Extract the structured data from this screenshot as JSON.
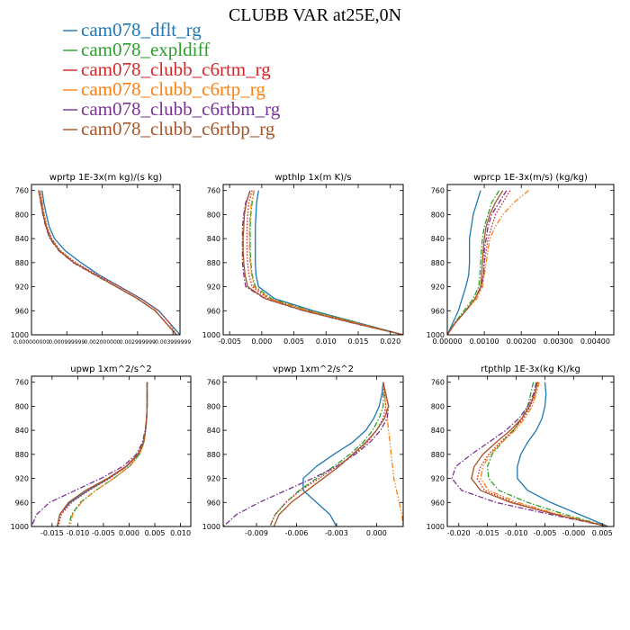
{
  "figure": {
    "title": "CLUBB VAR at25E,0N"
  },
  "legend": [
    {
      "name": "cam078_dflt_rg",
      "color": "#1f77b4",
      "dash": "solid"
    },
    {
      "name": "cam078_expldiff",
      "color": "#2ca02c",
      "dash": "dashdot"
    },
    {
      "name": "cam078_clubb_c6rtm_rg",
      "color": "#d62728",
      "dash": "dotted"
    },
    {
      "name": "cam078_clubb_c6rtp_rg",
      "color": "#ff7f0e",
      "dash": "dashdotdot"
    },
    {
      "name": "cam078_clubb_c6rtbm_rg",
      "color": "#7b3294",
      "dash": "dashdot"
    },
    {
      "name": "cam078_clubb_c6rtbp_rg",
      "color": "#a65628",
      "dash": "solid"
    }
  ],
  "chart_data": [
    {
      "type": "line",
      "title": "wprtp  1E-3x(m kg)/(s kg)",
      "xlim": [
        0.0,
        0.0042
      ],
      "ylim": [
        1000,
        750
      ],
      "xticks": [
        0.0,
        0.001,
        0.002,
        0.003,
        0.004
      ],
      "xtick_labels": [
        "0.000000000",
        "0.000999999",
        "0.002000000",
        "0.002999999",
        "0.003999999"
      ],
      "yticks": [
        760,
        800,
        840,
        880,
        920,
        960,
        1000
      ],
      "ytick_labels": [
        "760",
        "800",
        "840",
        "880",
        "920",
        "960",
        "1000"
      ],
      "y": [
        760,
        780,
        800,
        820,
        840,
        860,
        880,
        900,
        920,
        940,
        960,
        980,
        1000
      ],
      "series": [
        {
          "name": "cam078_dflt_rg",
          "x": [
            0.0003,
            0.00035,
            0.00042,
            0.0005,
            0.00065,
            0.00095,
            0.0014,
            0.0019,
            0.0025,
            0.0031,
            0.0036,
            0.0039,
            0.0042
          ]
        },
        {
          "name": "cam078_expldiff",
          "x": [
            0.00025,
            0.0003,
            0.00035,
            0.00042,
            0.00055,
            0.0008,
            0.0012,
            0.0018,
            0.0024,
            0.003,
            0.0035,
            0.0038,
            0.0041
          ]
        },
        {
          "name": "cam078_clubb_c6rtm_rg",
          "x": [
            0.00025,
            0.0003,
            0.00036,
            0.00044,
            0.00057,
            0.00082,
            0.00125,
            0.00185,
            0.0025,
            0.0031,
            0.0036,
            0.0039,
            0.0041
          ]
        },
        {
          "name": "cam078_clubb_c6rtp_rg",
          "x": [
            0.00025,
            0.0003,
            0.00035,
            0.00042,
            0.00055,
            0.0008,
            0.0012,
            0.0018,
            0.0024,
            0.003,
            0.0035,
            0.0038,
            0.0041
          ]
        },
        {
          "name": "cam078_clubb_c6rtbm_rg",
          "x": [
            0.0002,
            0.00026,
            0.00032,
            0.0004,
            0.00052,
            0.00077,
            0.00118,
            0.00178,
            0.0024,
            0.003,
            0.0035,
            0.0038,
            0.0041
          ]
        },
        {
          "name": "cam078_clubb_c6rtbp_rg",
          "x": [
            0.0002,
            0.00027,
            0.00033,
            0.00041,
            0.00054,
            0.00078,
            0.0012,
            0.0018,
            0.0024,
            0.003,
            0.0035,
            0.0038,
            0.0041
          ]
        }
      ]
    },
    {
      "type": "line",
      "title": "wpthlp  1x(m K)/s",
      "xlim": [
        -0.006,
        0.022
      ],
      "ylim": [
        1000,
        750
      ],
      "xticks": [
        -0.005,
        0.0,
        0.005,
        0.01,
        0.015,
        0.02
      ],
      "xtick_labels": [
        "-0.005",
        "0.000",
        "0.005",
        "0.010",
        "0.015",
        "0.020"
      ],
      "yticks": [
        760,
        800,
        840,
        880,
        920,
        960,
        1000
      ],
      "ytick_labels": [
        "760",
        "800",
        "840",
        "880",
        "920",
        "960",
        "1000"
      ],
      "y": [
        760,
        780,
        800,
        820,
        840,
        860,
        880,
        900,
        920,
        940,
        960,
        980,
        1000
      ],
      "series": [
        {
          "name": "cam078_dflt_rg",
          "x": [
            -0.0005,
            -0.0008,
            -0.0009,
            -0.001,
            -0.001,
            -0.001,
            -0.001,
            -0.0009,
            -0.0005,
            0.002,
            0.008,
            0.015,
            0.022
          ]
        },
        {
          "name": "cam078_expldiff",
          "x": [
            -0.0012,
            -0.0015,
            -0.0017,
            -0.0018,
            -0.0018,
            -0.0018,
            -0.0017,
            -0.0015,
            -0.001,
            0.0015,
            0.0075,
            0.0148,
            0.022
          ]
        },
        {
          "name": "cam078_clubb_c6rtm_rg",
          "x": [
            -0.0015,
            -0.002,
            -0.0022,
            -0.0023,
            -0.0023,
            -0.0023,
            -0.0022,
            -0.002,
            -0.0015,
            0.001,
            0.007,
            0.0145,
            0.022
          ]
        },
        {
          "name": "cam078_clubb_c6rtp_rg",
          "x": [
            -0.0012,
            -0.0016,
            -0.0018,
            -0.0019,
            -0.0019,
            -0.0019,
            -0.0018,
            -0.0016,
            -0.0012,
            0.0012,
            0.0072,
            0.0146,
            0.022
          ]
        },
        {
          "name": "cam078_clubb_c6rtbm_rg",
          "x": [
            -0.0018,
            -0.0025,
            -0.0028,
            -0.003,
            -0.003,
            -0.003,
            -0.003,
            -0.0028,
            -0.0025,
            0.0005,
            0.0065,
            0.014,
            0.022
          ]
        },
        {
          "name": "cam078_clubb_c6rtbp_rg",
          "x": [
            -0.0018,
            -0.0024,
            -0.0027,
            -0.0028,
            -0.0029,
            -0.0029,
            -0.0028,
            -0.0026,
            -0.0022,
            0.0006,
            0.0066,
            0.0141,
            0.022
          ]
        }
      ]
    },
    {
      "type": "line",
      "title": "wprcp  1E-3x(m/s) (kg/kg)",
      "xlim": [
        0.0,
        0.0045
      ],
      "ylim": [
        1000,
        750
      ],
      "xticks": [
        0.0,
        0.001,
        0.002,
        0.003,
        0.004
      ],
      "xtick_labels": [
        "0.00000",
        "0.00100",
        "0.00200",
        "0.00300",
        "0.00400"
      ],
      "yticks": [
        760,
        800,
        840,
        880,
        920,
        960,
        1000
      ],
      "ytick_labels": [
        "760",
        "800",
        "840",
        "880",
        "920",
        "960",
        "1000"
      ],
      "y": [
        760,
        780,
        800,
        820,
        840,
        860,
        880,
        900,
        920,
        940,
        960,
        980,
        1000
      ],
      "series": [
        {
          "name": "cam078_dflt_rg",
          "x": [
            0.0009,
            0.0008,
            0.0007,
            0.00065,
            0.0006,
            0.0006,
            0.0006,
            0.00058,
            0.0005,
            0.0004,
            0.0003,
            0.00015,
            0.0
          ]
        },
        {
          "name": "cam078_expldiff",
          "x": [
            0.0014,
            0.0012,
            0.0011,
            0.001,
            0.00095,
            0.00092,
            0.0009,
            0.00088,
            0.00085,
            0.0007,
            0.00045,
            0.0002,
            0.0
          ]
        },
        {
          "name": "cam078_clubb_c6rtm_rg",
          "x": [
            0.0017,
            0.0015,
            0.0013,
            0.0012,
            0.0011,
            0.00105,
            0.001,
            0.00098,
            0.00092,
            0.00075,
            0.0005,
            0.00022,
            0.0
          ]
        },
        {
          "name": "cam078_clubb_c6rtp_rg",
          "x": [
            0.0022,
            0.0018,
            0.0015,
            0.0013,
            0.00115,
            0.0011,
            0.00105,
            0.001,
            0.00095,
            0.0008,
            0.0005,
            0.00022,
            0.0
          ]
        },
        {
          "name": "cam078_clubb_c6rtbm_rg",
          "x": [
            0.0016,
            0.0014,
            0.0012,
            0.0011,
            0.00105,
            0.001,
            0.001,
            0.00098,
            0.00092,
            0.00075,
            0.0005,
            0.00022,
            0.0
          ]
        },
        {
          "name": "cam078_clubb_c6rtbp_rg",
          "x": [
            0.0015,
            0.0013,
            0.00115,
            0.00105,
            0.001,
            0.00097,
            0.00095,
            0.00093,
            0.0009,
            0.00075,
            0.0005,
            0.00022,
            0.0
          ]
        }
      ]
    },
    {
      "type": "line",
      "title": "upwp  1xm^2/s^2",
      "xlim": [
        -0.019,
        0.012
      ],
      "ylim": [
        1000,
        750
      ],
      "xticks": [
        -0.015,
        -0.01,
        -0.005,
        0.0,
        0.005,
        0.01
      ],
      "xtick_labels": [
        "-0.015",
        "-0.010",
        "-0.005",
        "0.000",
        "0.005",
        "0.010"
      ],
      "yticks": [
        760,
        800,
        840,
        880,
        920,
        960,
        1000
      ],
      "ytick_labels": [
        "760",
        "800",
        "840",
        "880",
        "920",
        "960",
        "1000"
      ],
      "y": [
        760,
        780,
        800,
        820,
        840,
        860,
        880,
        900,
        920,
        940,
        960,
        980,
        1000
      ],
      "series": [
        {
          "name": "cam078_dflt_rg",
          "x": [
            0.0035,
            0.0035,
            0.0035,
            0.0034,
            0.0032,
            0.0028,
            0.0018,
            -0.0005,
            -0.004,
            -0.008,
            -0.0115,
            -0.0135,
            -0.014
          ]
        },
        {
          "name": "cam078_expldiff",
          "x": [
            0.0035,
            0.0035,
            0.0035,
            0.0034,
            0.0032,
            0.0029,
            0.002,
            0.0001,
            -0.003,
            -0.0065,
            -0.0095,
            -0.0112,
            -0.0118
          ]
        },
        {
          "name": "cam078_clubb_c6rtm_rg",
          "x": [
            0.0035,
            0.0035,
            0.0035,
            0.0034,
            0.0032,
            0.0028,
            0.0018,
            -0.0004,
            -0.0038,
            -0.0078,
            -0.0112,
            -0.0132,
            -0.0138
          ]
        },
        {
          "name": "cam078_clubb_c6rtp_rg",
          "x": [
            0.0035,
            0.0035,
            0.0035,
            0.0034,
            0.0032,
            0.0029,
            0.002,
            0.0001,
            -0.003,
            -0.0065,
            -0.0093,
            -0.011,
            -0.0115
          ]
        },
        {
          "name": "cam078_clubb_c6rtbm_rg",
          "x": [
            0.0035,
            0.0035,
            0.0035,
            0.0034,
            0.0031,
            0.0026,
            0.0014,
            -0.0012,
            -0.0055,
            -0.0105,
            -0.0155,
            -0.018,
            -0.019
          ]
        },
        {
          "name": "cam078_clubb_c6rtbp_rg",
          "x": [
            0.0035,
            0.0035,
            0.0035,
            0.0034,
            0.0032,
            0.0028,
            0.0017,
            -0.0006,
            -0.0042,
            -0.0085,
            -0.0118,
            -0.0135,
            -0.014
          ]
        }
      ]
    },
    {
      "type": "line",
      "title": "vpwp  1xm^2/s^2",
      "xlim": [
        -0.0115,
        0.002
      ],
      "ylim": [
        1000,
        750
      ],
      "xticks": [
        -0.009,
        -0.006,
        -0.003,
        0.0
      ],
      "xtick_labels": [
        "-0.009",
        "-0.006",
        "-0.003",
        "0.000"
      ],
      "yticks": [
        760,
        800,
        840,
        880,
        920,
        960,
        1000
      ],
      "ytick_labels": [
        "760",
        "800",
        "840",
        "880",
        "920",
        "960",
        "1000"
      ],
      "y": [
        760,
        780,
        800,
        820,
        840,
        860,
        880,
        900,
        920,
        940,
        960,
        980,
        1000
      ],
      "series": [
        {
          "name": "cam078_dflt_rg",
          "x": [
            0.0005,
            0.0004,
            0.0002,
            -0.0002,
            -0.0008,
            -0.0018,
            -0.0032,
            -0.0045,
            -0.0055,
            -0.0055,
            -0.0045,
            -0.0035,
            -0.003
          ]
        },
        {
          "name": "cam078_expldiff",
          "x": [
            0.0005,
            0.0005,
            0.0005,
            0.0002,
            -0.0003,
            -0.001,
            -0.002,
            -0.0032,
            -0.0045,
            -0.0058,
            -0.0068,
            -0.0076,
            -0.008
          ]
        },
        {
          "name": "cam078_clubb_c6rtm_rg",
          "x": [
            0.0005,
            0.0006,
            0.0007,
            0.0005,
            0.0,
            -0.0007,
            -0.0017,
            -0.003,
            -0.0043,
            -0.0057,
            -0.0068,
            -0.0076,
            -0.008
          ]
        },
        {
          "name": "cam078_clubb_c6rtp_rg",
          "x": [
            0.0005,
            0.0006,
            0.0007,
            0.0008,
            0.0009,
            0.001,
            0.0011,
            0.0012,
            0.0013,
            0.0015,
            0.0017,
            0.0019,
            0.002
          ]
        },
        {
          "name": "cam078_clubb_c6rtbm_rg",
          "x": [
            0.0005,
            0.0007,
            0.0009,
            0.0008,
            0.0003,
            -0.0005,
            -0.0016,
            -0.003,
            -0.0048,
            -0.0068,
            -0.0088,
            -0.0105,
            -0.0115
          ]
        },
        {
          "name": "cam078_clubb_c6rtbp_rg",
          "x": [
            0.0005,
            0.0007,
            0.0009,
            0.0006,
            0.0,
            -0.0008,
            -0.0018,
            -0.0028,
            -0.004,
            -0.0052,
            -0.0064,
            -0.0073,
            -0.0077
          ]
        }
      ]
    },
    {
      "type": "line",
      "title": "rtpthlp  1E-3x(kg K)/kg",
      "xlim": [
        -0.022,
        0.007
      ],
      "ylim": [
        1000,
        750
      ],
      "xticks": [
        -0.02,
        -0.015,
        -0.01,
        -0.005,
        0.0,
        0.005
      ],
      "xtick_labels": [
        "-0.020",
        "-0.015",
        "-0.010",
        "-0.005",
        "-0.000",
        "0.005"
      ],
      "yticks": [
        760,
        800,
        840,
        880,
        920,
        960,
        1000
      ],
      "ytick_labels": [
        "760",
        "800",
        "840",
        "880",
        "920",
        "960",
        "1000"
      ],
      "y": [
        760,
        780,
        800,
        820,
        840,
        860,
        880,
        900,
        920,
        940,
        960,
        980,
        1000
      ],
      "series": [
        {
          "name": "cam078_dflt_rg",
          "x": [
            -0.005,
            -0.0048,
            -0.005,
            -0.0055,
            -0.0065,
            -0.008,
            -0.0092,
            -0.0098,
            -0.0098,
            -0.008,
            -0.004,
            0.001,
            0.006
          ]
        },
        {
          "name": "cam078_expldiff",
          "x": [
            -0.007,
            -0.0075,
            -0.008,
            -0.009,
            -0.0105,
            -0.0125,
            -0.0142,
            -0.015,
            -0.0148,
            -0.013,
            -0.008,
            -0.0015,
            0.006
          ]
        },
        {
          "name": "cam078_clubb_c6rtm_rg",
          "x": [
            -0.0062,
            -0.0067,
            -0.0075,
            -0.0088,
            -0.0105,
            -0.0128,
            -0.0148,
            -0.0162,
            -0.0168,
            -0.0155,
            -0.0105,
            -0.003,
            0.006
          ]
        },
        {
          "name": "cam078_clubb_c6rtp_rg",
          "x": [
            -0.006,
            -0.0065,
            -0.0072,
            -0.0085,
            -0.0102,
            -0.0125,
            -0.0145,
            -0.0158,
            -0.0162,
            -0.0148,
            -0.0098,
            -0.0025,
            0.006
          ]
        },
        {
          "name": "cam078_clubb_c6rtbm_rg",
          "x": [
            -0.0065,
            -0.007,
            -0.008,
            -0.0095,
            -0.0118,
            -0.0148,
            -0.0178,
            -0.0205,
            -0.0212,
            -0.0195,
            -0.0135,
            -0.004,
            0.006
          ]
        },
        {
          "name": "cam078_clubb_c6rtbp_rg",
          "x": [
            -0.0063,
            -0.0068,
            -0.0077,
            -0.009,
            -0.011,
            -0.0135,
            -0.0158,
            -0.0173,
            -0.0178,
            -0.0162,
            -0.011,
            -0.0032,
            0.006
          ]
        }
      ]
    }
  ]
}
